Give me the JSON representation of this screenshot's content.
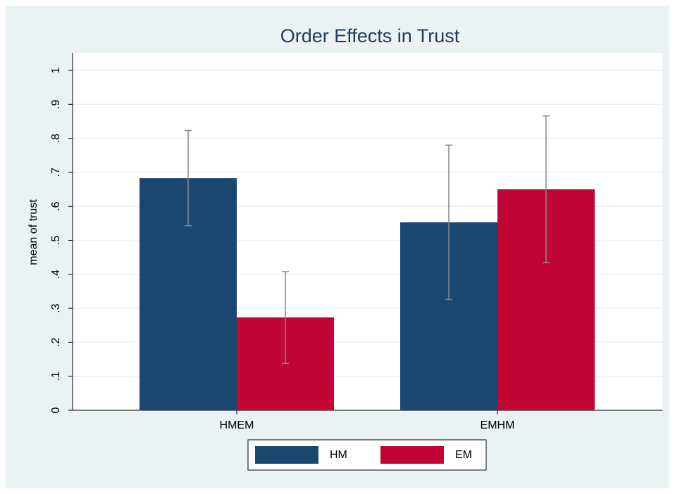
{
  "chart_data": {
    "type": "bar",
    "title": "Order Effects in Trust",
    "ylabel": "mean of trust",
    "categories": [
      "HMEM",
      "EMHM"
    ],
    "series": [
      {
        "name": "HM",
        "color": "#1a476f",
        "values": [
          0.683,
          0.553
        ],
        "errors": [
          0.14,
          0.227
        ]
      },
      {
        "name": "EM",
        "color": "#c10534",
        "values": [
          0.273,
          0.65
        ],
        "errors": [
          0.135,
          0.216
        ]
      }
    ],
    "ylim": [
      0,
      1
    ],
    "yticks": [
      0,
      {
        "value": 0.1,
        "label": ".1"
      },
      {
        "value": 0.2,
        "label": ".2"
      },
      {
        "value": 0.3,
        "label": ".3"
      },
      {
        "value": 0.4,
        "label": ".4"
      },
      {
        "value": 0.5,
        "label": ".5"
      },
      {
        "value": 0.6,
        "label": ".6"
      },
      {
        "value": 0.7,
        "label": ".7"
      },
      {
        "value": 0.8,
        "label": ".8"
      },
      {
        "value": 0.9,
        "label": ".9"
      },
      1
    ],
    "grid": true,
    "legend": "bottom"
  }
}
